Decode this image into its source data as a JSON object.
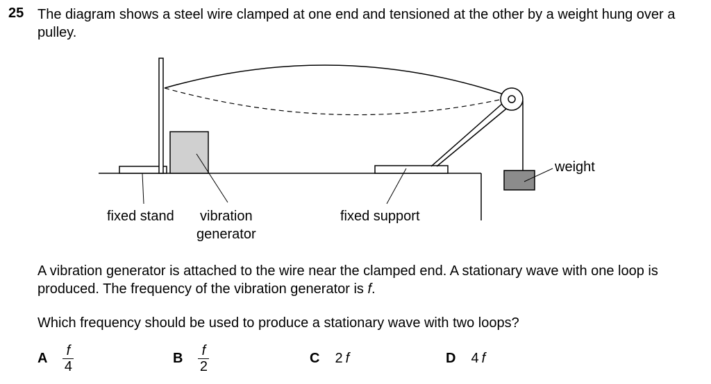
{
  "question": {
    "number": "25",
    "stem": "The diagram shows a steel wire clamped at one end and tensioned at the other by a weight hung over a pulley."
  },
  "diagram": {
    "labels": {
      "fixed_stand": "fixed stand",
      "vibration": "vibration",
      "generator": "generator",
      "fixed_support": "fixed support",
      "weight": "weight"
    }
  },
  "body": {
    "para1_part1": "A vibration generator is attached to the wire near the clamped end. A stationary wave with one loop is produced. The frequency of the vibration generator is ",
    "para1_var": "f",
    "para1_end": ".",
    "para2": "Which frequency should be used to produce a stationary wave with two loops?"
  },
  "options": [
    {
      "letter": "A",
      "num": "f",
      "den": "4"
    },
    {
      "letter": "B",
      "num": "f",
      "den": "2"
    },
    {
      "letter": "C",
      "coef": "2",
      "var": "f"
    },
    {
      "letter": "D",
      "coef": "4",
      "var": "f"
    }
  ]
}
